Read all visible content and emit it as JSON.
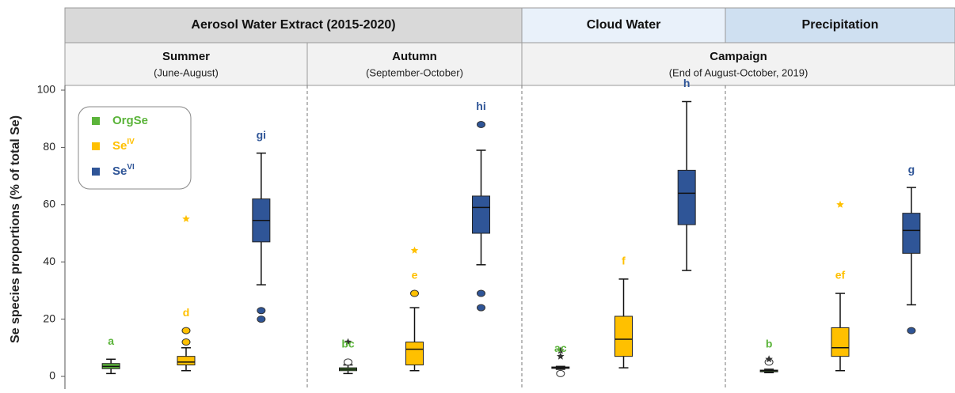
{
  "chart_data": {
    "type": "box",
    "header_top": [
      {
        "label": "Aerosol Water Extract (2015-2020)",
        "span": [
          0,
          1
        ],
        "color": "#d9d9d9"
      },
      {
        "label": "Cloud Water",
        "span": [
          2,
          2
        ],
        "color": "#e9f1fa"
      },
      {
        "label": "Precipitation",
        "span": [
          3,
          3
        ],
        "color": "#cfe0f1"
      }
    ],
    "header_sub": [
      {
        "title": "Summer",
        "subtitle": "(June-August)",
        "span": [
          0,
          0
        ]
      },
      {
        "title": "Autumn",
        "subtitle": "(September-October)",
        "span": [
          1,
          1
        ]
      },
      {
        "title": "Campaign",
        "subtitle": "(End of August-October, 2019)",
        "span": [
          2,
          3
        ]
      }
    ],
    "ylabel": "Se species proportions (% of total Se)",
    "ylim": [
      0,
      100
    ],
    "yticks": [
      0,
      20,
      40,
      60,
      80,
      100
    ],
    "series": [
      {
        "name": "OrgSe",
        "color": "#5bb43a",
        "outlier_color": "#ffffff",
        "extreme_color": "#333333",
        "low": [
          1,
          1,
          2.5,
          1.3
        ],
        "q1": [
          2.7,
          2,
          2.8,
          1.6
        ],
        "median": [
          3.5,
          2.5,
          3,
          2
        ],
        "q3": [
          4.5,
          3,
          3.3,
          2.2
        ],
        "high": [
          6,
          4,
          3.5,
          2.5
        ],
        "outliers": [
          [],
          [
            5
          ],
          [
            1
          ],
          [
            5
          ]
        ],
        "extremes": [
          [],
          [
            12
          ],
          [
            7,
            9
          ],
          [
            6
          ]
        ],
        "letters": [
          "a",
          "bc",
          "ac",
          "b"
        ]
      },
      {
        "name": "Se",
        "name_superscript": "IV",
        "color": "#ffc000",
        "outlier_color": "#ffc000",
        "extreme_color": "#ffc000",
        "low": [
          2,
          2,
          3,
          2
        ],
        "q1": [
          4,
          4,
          7,
          7
        ],
        "median": [
          5,
          9.5,
          13,
          10
        ],
        "q3": [
          7,
          12,
          21,
          17
        ],
        "high": [
          10,
          24,
          34,
          29
        ],
        "outliers": [
          [
            12,
            16
          ],
          [
            29
          ],
          [],
          []
        ],
        "extremes": [
          [
            55
          ],
          [
            44
          ],
          [],
          [
            60
          ]
        ],
        "letters": [
          "d",
          "e",
          "f",
          "ef"
        ]
      },
      {
        "name": "Se",
        "name_superscript": "VI",
        "color": "#2f5597",
        "outlier_color": "#2f5597",
        "extreme_color": "#2f5597",
        "low": [
          32,
          39,
          37,
          25
        ],
        "q1": [
          47,
          50,
          53,
          43
        ],
        "median": [
          54.5,
          59,
          64,
          51
        ],
        "q3": [
          62,
          63,
          72,
          57
        ],
        "high": [
          78,
          79,
          96,
          66
        ],
        "outliers": [
          [
            20,
            23
          ],
          [
            24,
            29,
            88
          ],
          [],
          [
            16
          ]
        ],
        "extremes": [
          [],
          [],
          [],
          []
        ],
        "letters": [
          "gi",
          "hi",
          "h",
          "g"
        ]
      }
    ]
  }
}
